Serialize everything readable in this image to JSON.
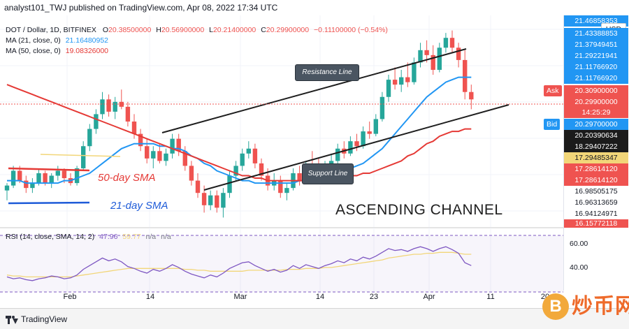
{
  "header": {
    "published": "analyst101_TWJ published on TradingView.com, Apr 08, 2022 17:34 UTC"
  },
  "legend": {
    "symbol": "DOT / Dollar, 1D, BITFINEX",
    "open_label": "O",
    "open": "20.38500000",
    "high_label": "H",
    "high": "20.56900000",
    "low_label": "L",
    "low": "20.21400000",
    "close_label": "C",
    "close": "20.29900000",
    "change": "−0.11100000 (−0.54%)",
    "ma21_label": "MA (21, close, 0)",
    "ma21_value": "21.16480952",
    "ma50_label": "MA (50, close, 0)",
    "ma50_value": "19.08326000",
    "rsi_label": "RSI (14, close, SMA, 14, 2)",
    "rsi_value": "47.96",
    "rsi_sma": "59.77",
    "rsi_na1": "n/a",
    "rsi_na2": "n/a"
  },
  "currency": "USD",
  "price_axis": {
    "labels": [
      "21.43388853",
      "21.37949451",
      "21.29221941",
      "21.11766920",
      "21.11766920",
      "20.29700000",
      "20.20390634",
      "18.29407222",
      "17.29485347",
      "17.28614120",
      "17.28614120",
      "16.98505175",
      "16.96313659",
      "16.94124971"
    ],
    "ask_label": "Ask",
    "ask_value": "20.30900000",
    "current_value": "20.29900000",
    "countdown": "14:25:29",
    "bid_label": "Bid",
    "bid_value": "20.29700000",
    "top_partial": "21.46858353",
    "bottom_partial": "16.15772118"
  },
  "rsi_axis": {
    "labels": [
      "60.00",
      "40.00"
    ]
  },
  "time_axis": {
    "labels": [
      "Feb",
      "14",
      "Mar",
      "14",
      "23",
      "Apr",
      "11",
      "20"
    ]
  },
  "annotations": {
    "resistance": "Resistance Line",
    "support": "Support Line",
    "sma50": "50-day SMA",
    "sma21": "21-day SMA",
    "channel": "ASCENDING CHANNEL"
  },
  "footer": {
    "brand": "TradingView"
  },
  "watermark": {
    "coin": "B",
    "text": "炒币网"
  },
  "colors": {
    "up": "#26a69a",
    "down": "#ef5350",
    "ma21": "#2196f3",
    "ma50": "#e53935",
    "rsi": "#7e57c2",
    "rsi_sma": "#f2d679"
  },
  "chart_data": {
    "type": "candlestick",
    "title": "DOT / Dollar, 1D, BITFINEX",
    "x_labels": [
      "Feb",
      "14",
      "Mar",
      "14",
      "23",
      "Apr",
      "11",
      "20"
    ],
    "candles": [
      [
        16.6,
        16.9,
        16.2,
        16.8
      ],
      [
        16.8,
        17.6,
        16.7,
        17.4
      ],
      [
        17.4,
        17.6,
        16.9,
        17.0
      ],
      [
        17.0,
        17.2,
        16.5,
        16.7
      ],
      [
        16.7,
        17.1,
        16.5,
        16.9
      ],
      [
        16.9,
        17.5,
        16.8,
        17.3
      ],
      [
        17.3,
        17.4,
        16.8,
        16.9
      ],
      [
        16.9,
        17.3,
        16.7,
        17.2
      ],
      [
        17.2,
        17.6,
        17.0,
        17.4
      ],
      [
        17.4,
        17.5,
        16.9,
        17.1
      ],
      [
        17.1,
        17.3,
        16.8,
        16.9
      ],
      [
        16.9,
        17.6,
        16.8,
        17.5
      ],
      [
        17.5,
        18.6,
        17.4,
        18.4
      ],
      [
        18.4,
        19.3,
        18.2,
        19.1
      ],
      [
        19.1,
        19.9,
        18.9,
        19.7
      ],
      [
        19.7,
        20.6,
        19.5,
        20.3
      ],
      [
        20.3,
        20.5,
        19.6,
        19.8
      ],
      [
        19.8,
        20.4,
        19.5,
        20.2
      ],
      [
        20.2,
        20.7,
        19.9,
        20.0
      ],
      [
        20.0,
        20.2,
        19.2,
        19.4
      ],
      [
        19.4,
        19.7,
        18.7,
        18.9
      ],
      [
        18.9,
        19.1,
        18.2,
        18.4
      ],
      [
        18.4,
        18.7,
        17.7,
        17.9
      ],
      [
        17.9,
        18.4,
        17.5,
        18.2
      ],
      [
        18.2,
        18.5,
        17.7,
        17.8
      ],
      [
        17.8,
        18.3,
        17.6,
        18.1
      ],
      [
        18.1,
        18.9,
        17.9,
        18.7
      ],
      [
        18.7,
        18.9,
        18.0,
        18.2
      ],
      [
        18.2,
        18.4,
        17.4,
        17.6
      ],
      [
        17.6,
        17.8,
        16.8,
        17.0
      ],
      [
        17.0,
        17.3,
        16.3,
        16.5
      ],
      [
        16.5,
        16.8,
        15.7,
        16.0
      ],
      [
        16.0,
        16.6,
        15.8,
        16.4
      ],
      [
        16.4,
        16.6,
        15.7,
        15.9
      ],
      [
        15.9,
        16.7,
        15.5,
        16.5
      ],
      [
        16.5,
        17.4,
        16.3,
        17.2
      ],
      [
        17.2,
        17.8,
        17.0,
        17.6
      ],
      [
        17.6,
        18.3,
        17.4,
        18.1
      ],
      [
        18.1,
        18.6,
        17.9,
        18.3
      ],
      [
        18.3,
        18.5,
        17.5,
        17.7
      ],
      [
        17.7,
        17.9,
        17.0,
        17.2
      ],
      [
        17.2,
        17.5,
        16.6,
        16.8
      ],
      [
        16.8,
        17.3,
        16.6,
        17.0
      ],
      [
        17.0,
        17.2,
        16.3,
        16.5
      ],
      [
        16.5,
        16.9,
        16.2,
        16.7
      ],
      [
        16.7,
        17.5,
        16.6,
        17.3
      ],
      [
        17.3,
        17.6,
        16.8,
        17.0
      ],
      [
        17.0,
        17.8,
        16.9,
        17.6
      ],
      [
        17.6,
        18.2,
        17.4,
        17.5
      ],
      [
        17.5,
        17.9,
        17.0,
        17.3
      ],
      [
        17.3,
        17.8,
        17.1,
        17.6
      ],
      [
        17.6,
        18.1,
        17.4,
        17.8
      ],
      [
        17.8,
        18.5,
        17.6,
        18.3
      ],
      [
        18.3,
        18.6,
        17.9,
        18.1
      ],
      [
        18.1,
        18.8,
        18.0,
        18.6
      ],
      [
        18.6,
        18.9,
        18.2,
        18.4
      ],
      [
        18.4,
        19.2,
        18.3,
        19.0
      ],
      [
        19.0,
        19.4,
        18.7,
        18.9
      ],
      [
        18.9,
        19.7,
        18.8,
        19.5
      ],
      [
        19.5,
        20.6,
        19.4,
        20.4
      ],
      [
        20.4,
        21.3,
        20.2,
        21.1
      ],
      [
        21.1,
        21.6,
        20.7,
        20.9
      ],
      [
        20.9,
        21.5,
        20.6,
        21.2
      ],
      [
        21.2,
        21.8,
        20.8,
        21.0
      ],
      [
        21.0,
        22.0,
        20.9,
        21.8
      ],
      [
        21.8,
        22.6,
        21.6,
        22.3
      ],
      [
        22.3,
        22.7,
        21.8,
        22.1
      ],
      [
        22.1,
        22.5,
        21.3,
        21.5
      ],
      [
        21.5,
        22.6,
        21.4,
        22.4
      ],
      [
        22.4,
        23.0,
        22.2,
        22.8
      ],
      [
        22.8,
        23.1,
        22.2,
        22.4
      ],
      [
        22.4,
        22.6,
        21.6,
        21.9
      ],
      [
        21.9,
        22.3,
        20.3,
        20.6
      ],
      [
        20.6,
        20.9,
        19.9,
        20.3
      ]
    ],
    "series": [
      {
        "name": "MA (21, close, 0)",
        "values": [
          17.0,
          17.0,
          17.0,
          16.9,
          16.9,
          16.9,
          16.9,
          16.9,
          16.9,
          17.0,
          17.0,
          17.1,
          17.2,
          17.3,
          17.5,
          17.7,
          17.9,
          18.1,
          18.3,
          18.4,
          18.5,
          18.5,
          18.5,
          18.5,
          18.4,
          18.4,
          18.3,
          18.3,
          18.2,
          18.0,
          17.9,
          17.7,
          17.6,
          17.4,
          17.3,
          17.2,
          17.1,
          17.0,
          17.0,
          16.9,
          16.9,
          16.9,
          16.9,
          16.9,
          16.9,
          16.9,
          17.0,
          17.0,
          17.0,
          17.1,
          17.1,
          17.2,
          17.3,
          17.4,
          17.5,
          17.6,
          17.7,
          17.9,
          18.1,
          18.3,
          18.6,
          18.9,
          19.2,
          19.5,
          19.8,
          20.1,
          20.4,
          20.6,
          20.8,
          21.0,
          21.1,
          21.2,
          21.2,
          21.2
        ]
      },
      {
        "name": "MA (50, close, 0)",
        "values": [
          20.9,
          20.8,
          20.7,
          20.6,
          20.5,
          20.4,
          20.3,
          20.2,
          20.1,
          20.0,
          19.9,
          19.8,
          19.7,
          19.6,
          19.5,
          19.4,
          19.3,
          19.2,
          19.1,
          19.0,
          18.9,
          18.8,
          18.7,
          18.6,
          18.5,
          18.4,
          18.3,
          18.2,
          18.1,
          18.0,
          17.9,
          17.8,
          17.7,
          17.6,
          17.5,
          17.4,
          17.3,
          17.2,
          17.2,
          17.1,
          17.1,
          17.0,
          17.0,
          17.0,
          17.0,
          17.0,
          17.0,
          17.0,
          17.0,
          17.0,
          17.0,
          17.1,
          17.1,
          17.1,
          17.2,
          17.2,
          17.3,
          17.3,
          17.4,
          17.5,
          17.6,
          17.7,
          17.8,
          18.0,
          18.1,
          18.3,
          18.5,
          18.6,
          18.8,
          18.9,
          19.0,
          19.0,
          19.1,
          19.1
        ]
      },
      {
        "name": "RSI (14, close, SMA, 14, 2)",
        "values": [
          36,
          34,
          35,
          33,
          32,
          34,
          35,
          37,
          36,
          34,
          35,
          38,
          44,
          48,
          52,
          56,
          53,
          55,
          52,
          47,
          45,
          42,
          40,
          44,
          42,
          45,
          49,
          46,
          42,
          39,
          37,
          35,
          38,
          36,
          40,
          45,
          48,
          51,
          52,
          48,
          45,
          42,
          44,
          41,
          43,
          48,
          45,
          49,
          47,
          45,
          48,
          50,
          53,
          51,
          55,
          53,
          57,
          55,
          58,
          62,
          66,
          64,
          65,
          63,
          66,
          68,
          66,
          63,
          66,
          68,
          65,
          61,
          51,
          48
        ]
      },
      {
        "name": "RSI SMA",
        "values": [
          38,
          37,
          37,
          36,
          36,
          36,
          36,
          36,
          36,
          36,
          36,
          37,
          38,
          39,
          40,
          41,
          42,
          43,
          44,
          45,
          45,
          45,
          45,
          45,
          45,
          45,
          45,
          45,
          44,
          44,
          43,
          43,
          42,
          42,
          42,
          42,
          42,
          42,
          43,
          43,
          43,
          43,
          43,
          43,
          44,
          44,
          44,
          45,
          45,
          45,
          46,
          46,
          47,
          48,
          49,
          50,
          51,
          52,
          53,
          54,
          56,
          57,
          58,
          59,
          60,
          60,
          61,
          61,
          62,
          62,
          62,
          61,
          60,
          60
        ]
      }
    ],
    "ylim": [
      15.2,
      23.6
    ],
    "rsi_ylim": [
      20,
      80
    ],
    "grid": true
  }
}
